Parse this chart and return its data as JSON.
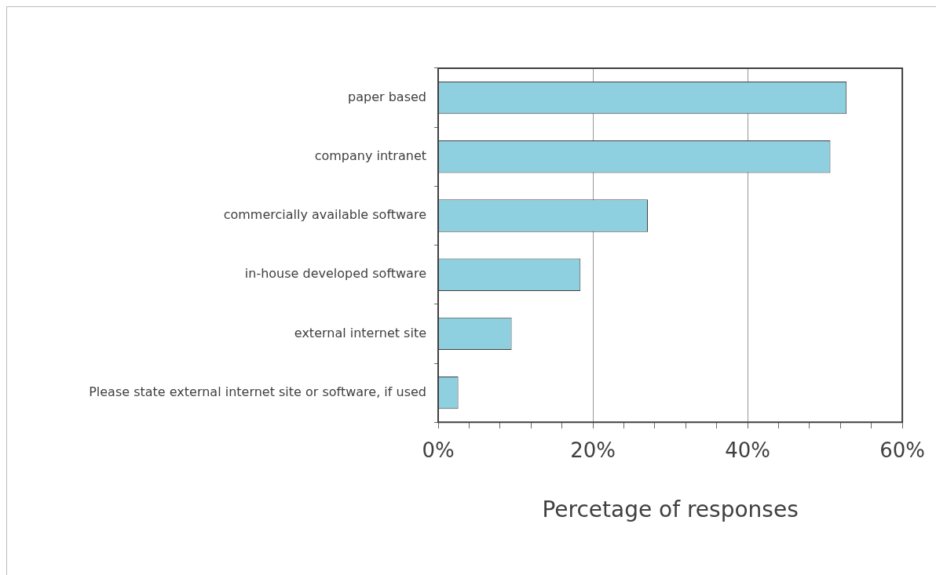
{
  "chart_data": {
    "type": "bar",
    "orientation": "horizontal",
    "xlabel": "Percetage of responses",
    "categories": [
      "paper based",
      "company intranet",
      "commercially available software",
      "in-house developed software",
      "external internet site",
      "Please state external internet site or software, if used"
    ],
    "values": [
      52.8,
      50.7,
      27.1,
      18.4,
      9.5,
      2.6
    ],
    "color": "#8ecfe0",
    "xlim": [
      0,
      60
    ],
    "xticks": [
      {
        "value": 0,
        "label": "0%"
      },
      {
        "value": 4,
        "label": null
      },
      {
        "value": 8,
        "label": null
      },
      {
        "value": 12,
        "label": null
      },
      {
        "value": 16,
        "label": null
      },
      {
        "value": 20,
        "label": "20%"
      },
      {
        "value": 24,
        "label": null
      },
      {
        "value": 28,
        "label": null
      },
      {
        "value": 32,
        "label": null
      },
      {
        "value": 36,
        "label": null
      },
      {
        "value": 40,
        "label": "40%"
      },
      {
        "value": 44,
        "label": null
      },
      {
        "value": 48,
        "label": null
      },
      {
        "value": 52,
        "label": null
      },
      {
        "value": 56,
        "label": null
      },
      {
        "value": 60,
        "label": "60%"
      }
    ],
    "grid": "x",
    "legend": false
  }
}
